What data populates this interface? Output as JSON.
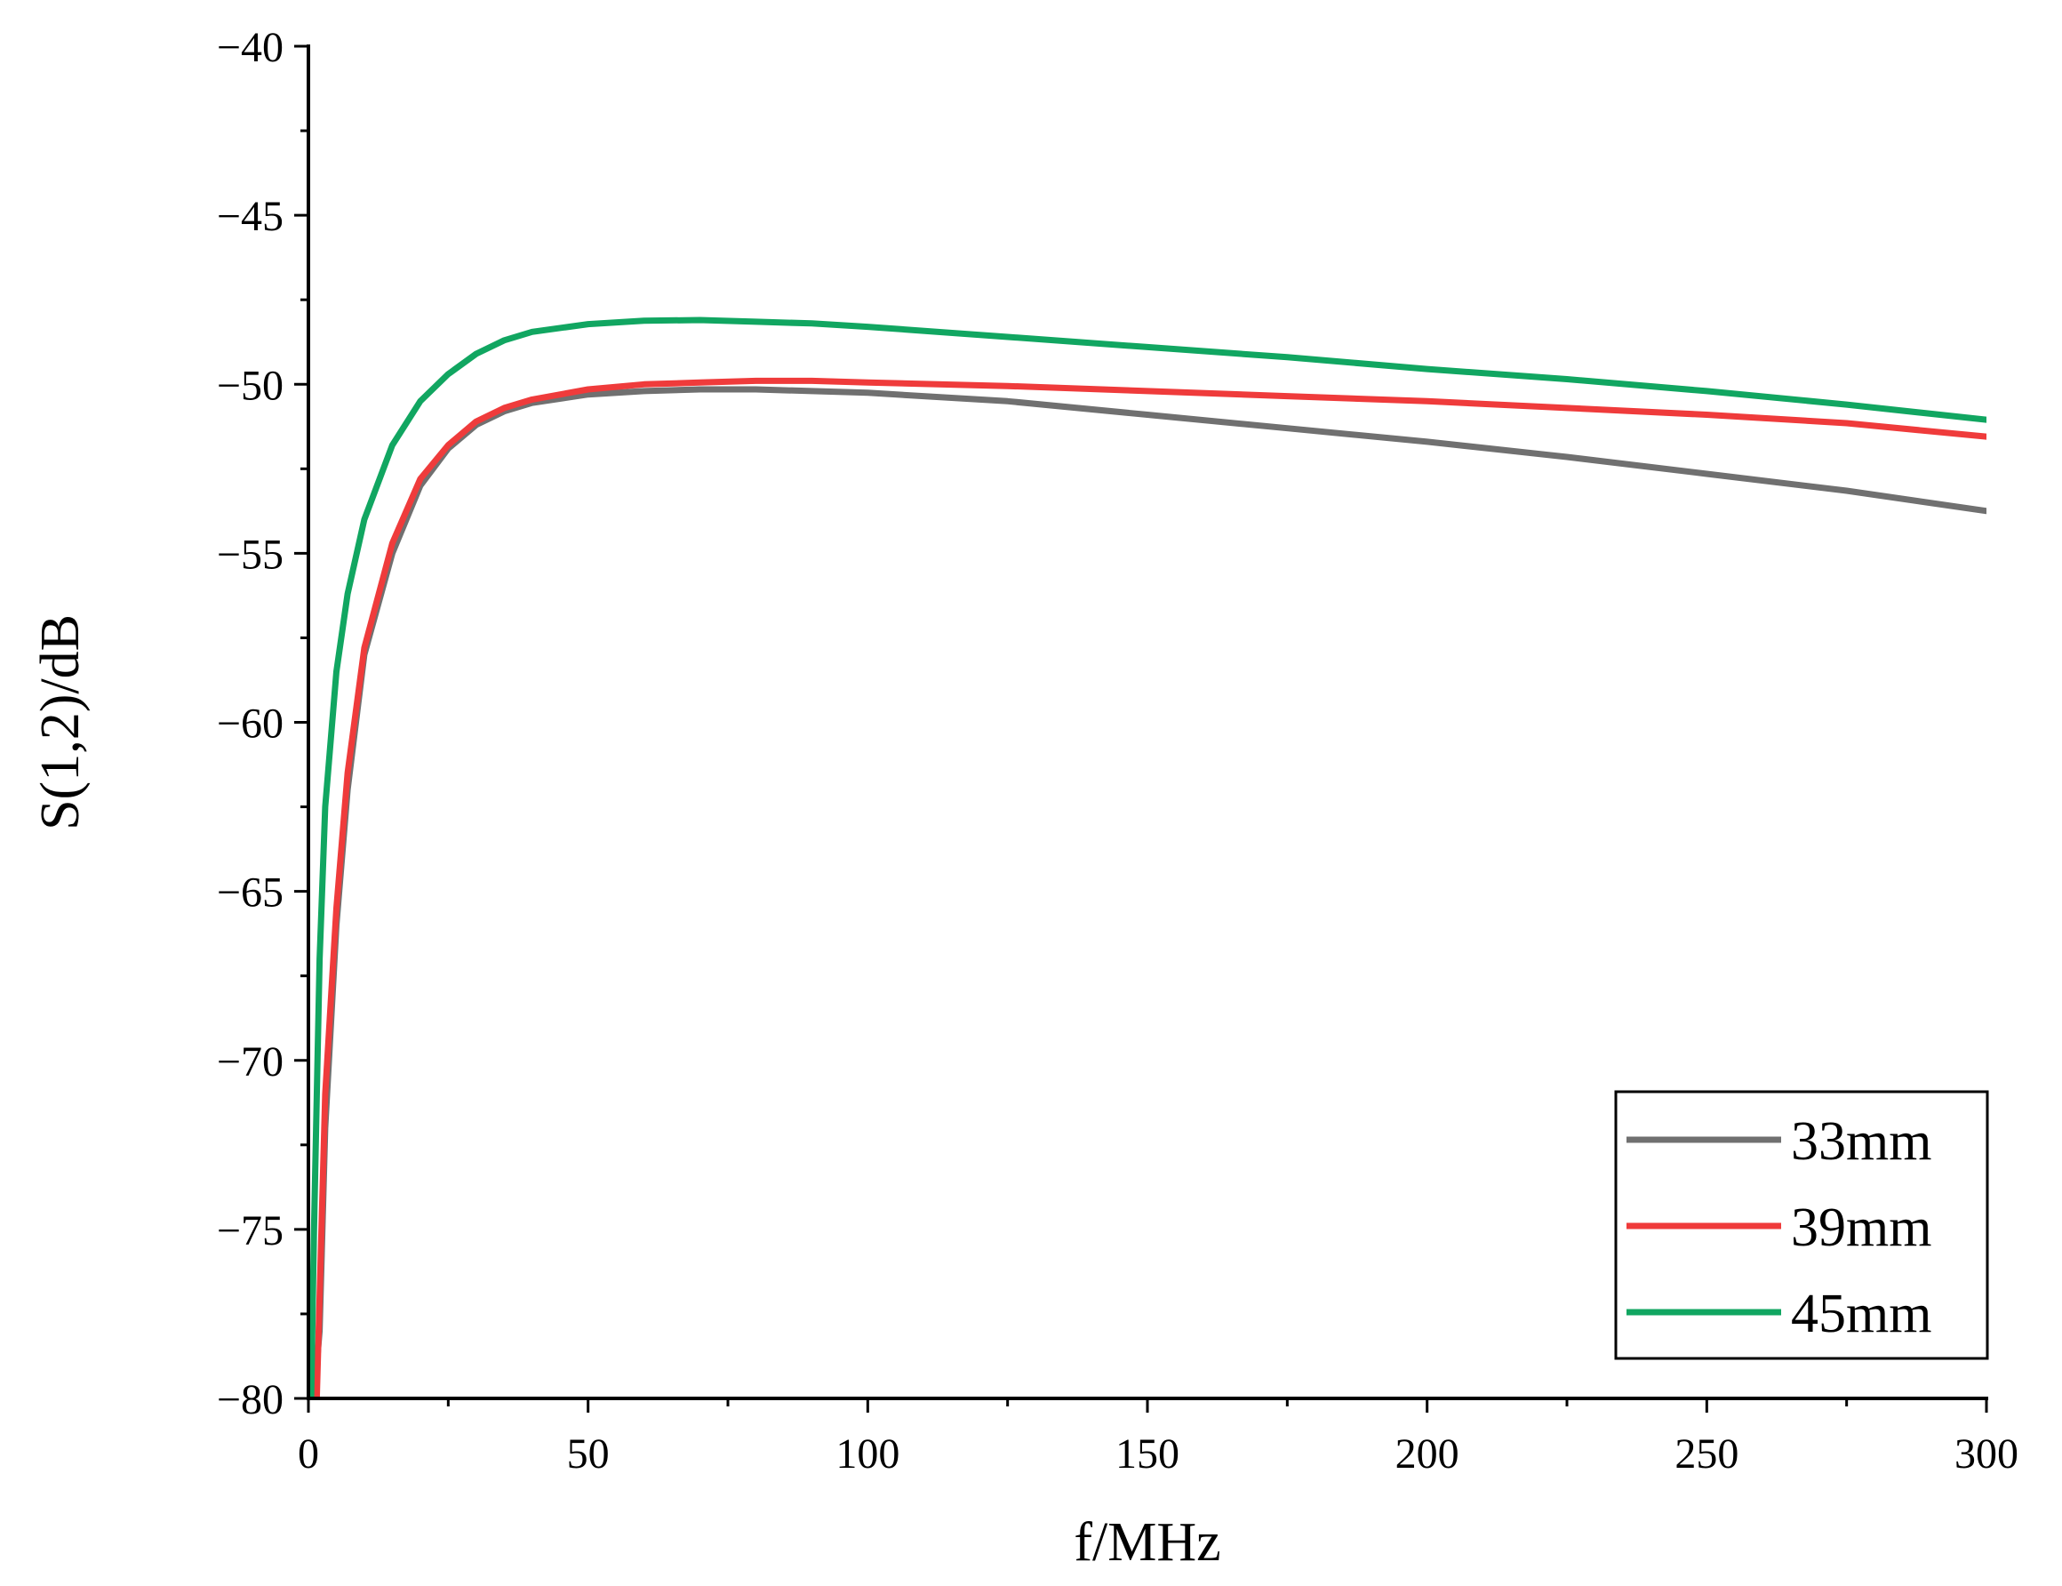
{
  "chart_data": {
    "type": "line",
    "title": "",
    "xlabel": "f/MHz",
    "ylabel": "S(1,2)/dB",
    "xlim": [
      0,
      300
    ],
    "ylim": [
      -80,
      -40
    ],
    "xticks": [
      0,
      50,
      100,
      150,
      200,
      250,
      300
    ],
    "xtick_labels": [
      "0",
      "50",
      "100",
      "150",
      "200",
      "250",
      "300"
    ],
    "yticks": [
      -80,
      -75,
      -70,
      -65,
      -60,
      -55,
      -50,
      -45,
      -40
    ],
    "ytick_labels": [
      "−80",
      "−75",
      "−70",
      "−65",
      "−60",
      "−55",
      "−50",
      "−45",
      "−40"
    ],
    "grid": false,
    "legend_position": "bottom-right",
    "series": [
      {
        "name": "33mm",
        "color": "#707070",
        "x": [
          0.5,
          1,
          2,
          3,
          5,
          7,
          10,
          15,
          20,
          25,
          30,
          35,
          40,
          50,
          60,
          70,
          80,
          90,
          100,
          125,
          150,
          175,
          200,
          225,
          250,
          275,
          300
        ],
        "y": [
          -80,
          -80,
          -78,
          -72,
          -66,
          -62,
          -58,
          -55,
          -53,
          -51.9,
          -51.2,
          -50.8,
          -50.55,
          -50.3,
          -50.2,
          -50.15,
          -50.15,
          -50.2,
          -50.25,
          -50.5,
          -50.9,
          -51.3,
          -51.7,
          -52.15,
          -52.65,
          -53.15,
          -53.75
        ]
      },
      {
        "name": "39mm",
        "color": "#ef3b3b",
        "x": [
          1.5,
          2,
          3,
          5,
          7,
          10,
          15,
          20,
          25,
          30,
          35,
          40,
          50,
          60,
          70,
          80,
          90,
          100,
          125,
          150,
          175,
          200,
          225,
          250,
          275,
          300
        ],
        "y": [
          -80,
          -77,
          -71,
          -65.5,
          -61.5,
          -57.8,
          -54.7,
          -52.8,
          -51.8,
          -51.1,
          -50.7,
          -50.45,
          -50.15,
          -50.0,
          -49.95,
          -49.9,
          -49.9,
          -49.95,
          -50.05,
          -50.2,
          -50.35,
          -50.5,
          -50.7,
          -50.9,
          -51.15,
          -51.55
        ]
      },
      {
        "name": "45mm",
        "color": "#11a661",
        "x": [
          0.5,
          1,
          2,
          3,
          5,
          7,
          10,
          15,
          20,
          25,
          30,
          35,
          40,
          50,
          60,
          70,
          80,
          90,
          100,
          125,
          150,
          175,
          200,
          225,
          250,
          275,
          300
        ],
        "y": [
          -80,
          -75,
          -67,
          -62.5,
          -58.5,
          -56.2,
          -54.0,
          -51.8,
          -50.5,
          -49.7,
          -49.1,
          -48.7,
          -48.45,
          -48.22,
          -48.12,
          -48.1,
          -48.15,
          -48.2,
          -48.3,
          -48.6,
          -48.9,
          -49.2,
          -49.55,
          -49.85,
          -50.2,
          -50.6,
          -51.05
        ]
      }
    ]
  }
}
